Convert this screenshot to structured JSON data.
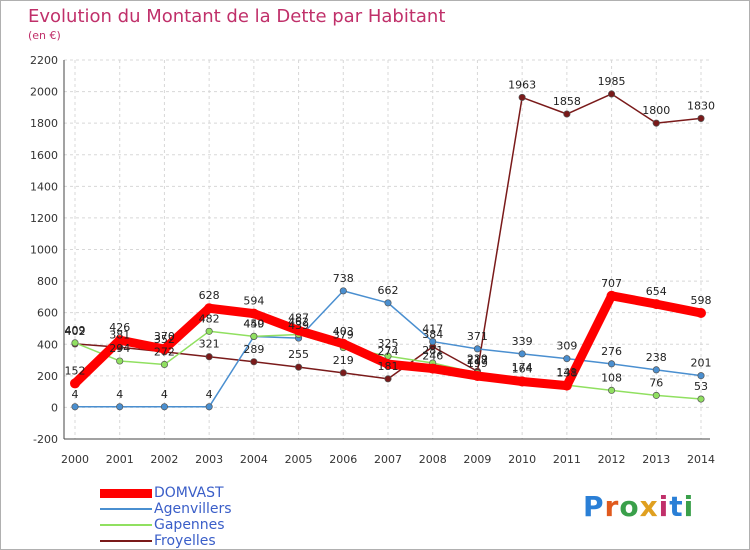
{
  "header": {
    "title": "Evolution du Montant de la Dette par Habitant",
    "subtitle": "(en €)"
  },
  "brand": {
    "letters": [
      "P",
      "r",
      "o",
      "x",
      "i",
      "t",
      "i"
    ],
    "colors": [
      "#2a7fd6",
      "#e05a1e",
      "#3aa04a",
      "#e0a020",
      "#c0306a",
      "#2a7fd6",
      "#3aa04a"
    ]
  },
  "chart_data": {
    "type": "line",
    "title": "Evolution du Montant de la Dette par Habitant",
    "subtitle": "(en €)",
    "x": [
      "2000",
      "2001",
      "2002",
      "2003",
      "2004",
      "2005",
      "2006",
      "2007",
      "2008",
      "2009",
      "2010",
      "2011",
      "2012",
      "2013",
      "2014"
    ],
    "ylim": [
      -200,
      2200
    ],
    "yticks": [
      -200,
      0,
      200,
      400,
      600,
      800,
      1000,
      1200,
      1400,
      1600,
      1800,
      2000,
      2200
    ],
    "grid": true,
    "legend_position": "bottom-left",
    "series": [
      {
        "name": "DOMVAST",
        "color": "#ff0000",
        "values": [
          152,
          426,
          370,
          628,
          594,
          487,
          403,
          274,
          246,
          199,
          164,
          138,
          707,
          654,
          598
        ],
        "labels": [
          "152",
          "426",
          "370",
          "628",
          "594",
          "487",
          "403",
          "274",
          "246",
          "199",
          "164",
          "138",
          "707",
          "654",
          "598"
        ]
      },
      {
        "name": "Agenvillers",
        "color": "#4a8fd0",
        "values": [
          4,
          4,
          4,
          4,
          449,
          439,
          738,
          662,
          417,
          371,
          339,
          309,
          276,
          238,
          201
        ],
        "labels": [
          "4",
          "4",
          "4",
          "4",
          "449",
          "439",
          "738",
          "662",
          "417",
          "371",
          "339",
          "309",
          "276",
          "238",
          "201"
        ]
      },
      {
        "name": "Gapennes",
        "color": "#90e060",
        "values": [
          409,
          294,
          272,
          482,
          450,
          462,
          379,
          325,
          281,
          217,
          174,
          141,
          108,
          76,
          53
        ],
        "labels": [
          "409",
          "294",
          "272",
          "482",
          "450",
          "462",
          "379",
          "325",
          "281",
          "217",
          "174",
          "141",
          "108",
          "76",
          "53"
        ]
      },
      {
        "name": "Froyelles",
        "color": "#7a1a1a",
        "values": [
          402,
          381,
          352,
          321,
          289,
          255,
          219,
          181,
          384,
          229,
          1963,
          1858,
          1985,
          1800,
          1830
        ],
        "labels": [
          "402",
          "381",
          "352",
          "321",
          "289",
          "255",
          "219",
          "181",
          "384",
          "229",
          "1963",
          "1858",
          "1985",
          "1800",
          "1830"
        ]
      }
    ]
  }
}
